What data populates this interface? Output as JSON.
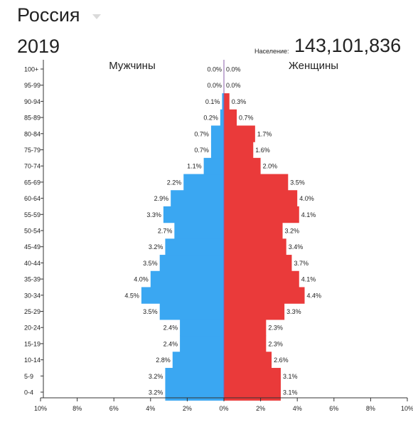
{
  "header": {
    "country": "Россия",
    "year": "2019",
    "population_label": "Население:",
    "population_value": "143,101,836"
  },
  "chart_data": {
    "type": "bar",
    "orientation": "horizontal-population-pyramid",
    "categories": [
      "0-4",
      "5-9",
      "10-14",
      "15-19",
      "20-24",
      "25-29",
      "30-34",
      "35-39",
      "40-44",
      "45-49",
      "50-54",
      "55-59",
      "60-64",
      "65-69",
      "70-74",
      "75-79",
      "80-84",
      "85-89",
      "90-94",
      "95-99",
      "100+"
    ],
    "series": [
      {
        "name": "Мужчины",
        "color": "#3aa7f2",
        "values": [
          3.2,
          3.2,
          2.8,
          2.4,
          2.4,
          3.5,
          4.5,
          4.0,
          3.5,
          3.2,
          2.7,
          3.3,
          2.9,
          2.2,
          1.1,
          0.7,
          0.7,
          0.2,
          0.1,
          0.0,
          0.0
        ],
        "labels": [
          "3.2%",
          "3.2%",
          "2.8%",
          "2.4%",
          "2.4%",
          "3.5%",
          "4.5%",
          "4.0%",
          "3.5%",
          "3.2%",
          "2.7%",
          "3.3%",
          "2.9%",
          "2.2%",
          "1.1%",
          "0.7%",
          "0.7%",
          "0.2%",
          "0.1%",
          "0.0%",
          "0.0%"
        ]
      },
      {
        "name": "Женщины",
        "color": "#ea3a3a",
        "values": [
          3.1,
          3.1,
          2.6,
          2.3,
          2.3,
          3.3,
          4.4,
          4.1,
          3.7,
          3.4,
          3.2,
          4.1,
          4.0,
          3.5,
          2.0,
          1.6,
          1.7,
          0.7,
          0.3,
          0.0,
          0.0
        ],
        "labels": [
          "3.1%",
          "3.1%",
          "2.6%",
          "2.3%",
          "2.3%",
          "3.3%",
          "4.4%",
          "4.1%",
          "3.7%",
          "3.4%",
          "3.2%",
          "4.1%",
          "4.0%",
          "3.5%",
          "2.0%",
          "1.6%",
          "1.7%",
          "0.7%",
          "0.3%",
          "0.0%",
          "0.0%"
        ]
      }
    ],
    "xlim": [
      -10,
      10
    ],
    "x_ticks": [
      "10%",
      "8%",
      "6%",
      "4%",
      "2%",
      "0%",
      "2%",
      "4%",
      "6%",
      "8%",
      "10%"
    ],
    "xlabel": "",
    "ylabel": "",
    "grid": false,
    "legend": "series names printed above each side"
  }
}
